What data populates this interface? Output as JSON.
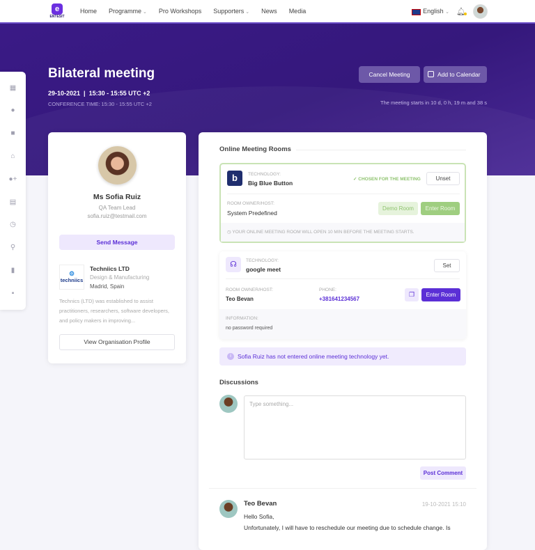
{
  "nav": {
    "logo": "ENTESIT",
    "items": [
      {
        "label": "Home",
        "dropdown": false
      },
      {
        "label": "Programme",
        "dropdown": true
      },
      {
        "label": "Pro Workshops",
        "dropdown": false
      },
      {
        "label": "Supporters",
        "dropdown": true
      },
      {
        "label": "News",
        "dropdown": false
      },
      {
        "label": "Media",
        "dropdown": false
      }
    ],
    "language": "English"
  },
  "header": {
    "title": "Bilateral meeting",
    "date": "29-10-2021",
    "time": "15:30 - 15:55 UTC +2",
    "conference_time": "CONFERENCE TIME: 15:30 - 15:55 UTC +2",
    "cancel": "Cancel Meeting",
    "add_calendar": "Add to Calendar",
    "countdown": "The meeting starts in 10 d, 0 h, 19 m and 38 s"
  },
  "sidebar": {
    "icons": [
      "grid-icon",
      "user-icon",
      "briefcase-icon",
      "store-icon",
      "user-plus-icon",
      "calendar-icon",
      "clock-icon",
      "search-icon",
      "bookmark-icon",
      "chat-icon"
    ]
  },
  "profile": {
    "name": "Ms Sofia Ruiz",
    "role": "QA Team Lead",
    "email": "sofia.ruiz@testmail.com",
    "send": "Send Message",
    "org": {
      "logo": "techniics",
      "name": "Techniics LTD",
      "industry": "Design & Manufacturing",
      "location": "Madrid, Spain",
      "description": "Technics (LTD) was established to assist practitioners, researchers, software developers, and policy makers in improving...",
      "view": "View Organisation Profile"
    }
  },
  "rooms": {
    "title": "Online Meeting Rooms",
    "bbb": {
      "tech_label": "TECHNOLOGY:",
      "tech": "Big Blue Button",
      "chosen": "CHOSEN FOR THE MEETING",
      "unset": "Unset",
      "owner_label": "ROOM OWNER/HOST:",
      "owner": "System Predefined",
      "demo": "Demo Room",
      "enter": "Enter Room",
      "notice": "YOUR ONLINE MEETING ROOM WILL OPEN 10 MIN BEFORE THE MEETING STARTS."
    },
    "gmeet": {
      "tech_label": "TECHNOLOGY:",
      "tech": "google meet",
      "set": "Set",
      "owner_label": "ROOM OWNER/HOST:",
      "owner": "Teo Bevan",
      "phone_label": "PHONE:",
      "phone": "+381641234567",
      "enter": "Enter Room",
      "info_label": "INFORMATION:",
      "info": "no password required"
    },
    "notice": "Sofia Ruiz has not entered online meeting technology yet."
  },
  "discussions": {
    "title": "Discussions",
    "placeholder": "Type something...",
    "post": "Post Comment",
    "comments": [
      {
        "author": "Teo Bevan",
        "date": "19-10-2021 15:10",
        "line1": "Hello Sofia,",
        "line2": "Unfortunately, I will have to reschedule our meeting due to schedule change. Is"
      }
    ]
  },
  "colors": {
    "primary": "#5b2fd6",
    "banner": "#3a1a86",
    "chosen_green": "#8fc36f"
  }
}
